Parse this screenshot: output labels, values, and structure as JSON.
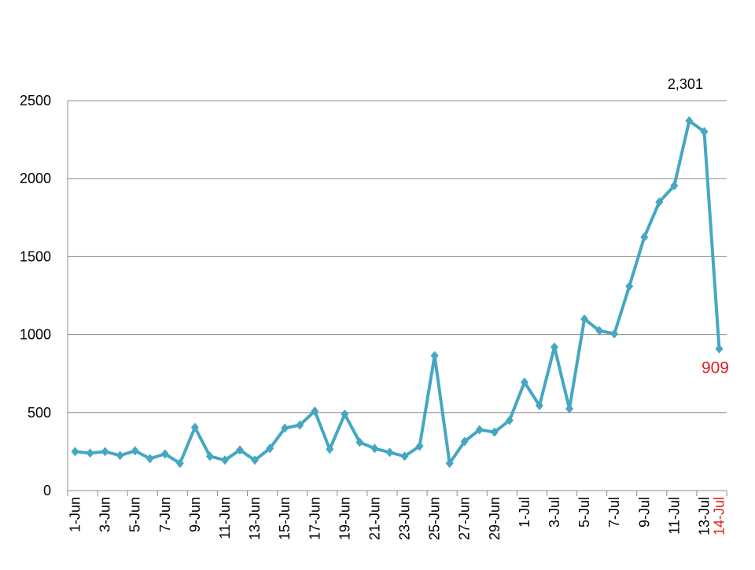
{
  "chart_data": {
    "type": "line",
    "categories": [
      "1-Jun",
      null,
      "3-Jun",
      null,
      "5-Jun",
      null,
      "7-Jun",
      null,
      "9-Jun",
      null,
      "11-Jun",
      null,
      "13-Jun",
      null,
      "15-Jun",
      null,
      "17-Jun",
      null,
      "19-Jun",
      null,
      "21-Jun",
      null,
      "23-Jun",
      null,
      "25-Jun",
      null,
      "27-Jun",
      null,
      "29-Jun",
      null,
      "1-Jul",
      null,
      "3-Jul",
      null,
      "5-Jul",
      null,
      "7-Jul",
      null,
      "9-Jul",
      null,
      "11-Jul",
      null,
      "13-Jul",
      "14-Jul"
    ],
    "values": [
      250,
      240,
      250,
      225,
      255,
      205,
      235,
      175,
      405,
      220,
      195,
      260,
      195,
      270,
      400,
      420,
      510,
      265,
      490,
      310,
      270,
      245,
      220,
      285,
      865,
      175,
      315,
      390,
      375,
      450,
      695,
      545,
      920,
      525,
      1100,
      1025,
      1005,
      1310,
      1625,
      1850,
      1955,
      2370,
      2301,
      909
    ],
    "value_labels": [
      null,
      null,
      null,
      null,
      null,
      null,
      null,
      null,
      null,
      null,
      null,
      null,
      null,
      null,
      null,
      null,
      null,
      null,
      null,
      null,
      null,
      null,
      null,
      null,
      null,
      null,
      null,
      null,
      null,
      null,
      null,
      null,
      null,
      null,
      null,
      null,
      null,
      null,
      null,
      null,
      null,
      null,
      "2,301",
      "909"
    ],
    "color": "#46a7c1",
    "highlight_color": "#e0201b",
    "ylim": [
      0,
      2500
    ],
    "yticks": [
      0,
      500,
      1000,
      1500,
      2000,
      2500
    ],
    "grid": true
  }
}
